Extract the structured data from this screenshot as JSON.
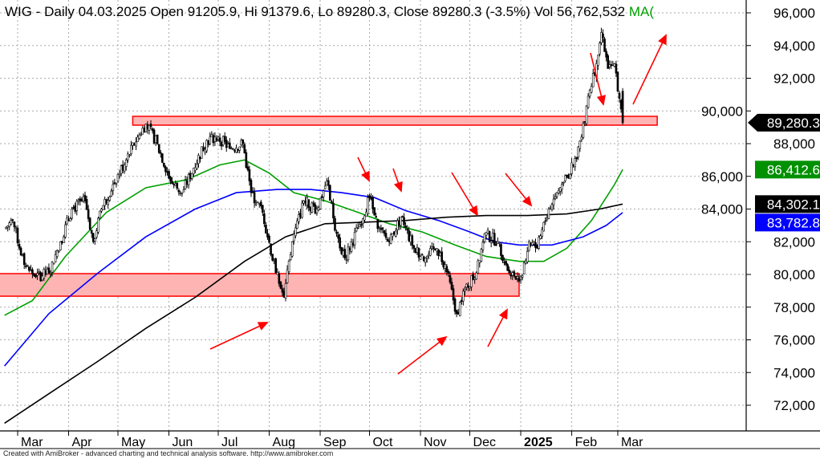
{
  "header": {
    "title": "WIG - Daily 04.03.2025 Open 91205.9, Hi 91379.6, Lo 89280.3, Close 89280.3 (-3.5%) Vol 56,762,532",
    "ma_label": "MA("
  },
  "footer": "Created with AmiBroker - advanced charting and technical analysis software. http://www.amibroker.com",
  "chart_data": {
    "type": "candlestick",
    "symbol": "WIG",
    "interval": "Daily",
    "ylim": [
      70000,
      96500
    ],
    "y_ticks": [
      72000,
      74000,
      76000,
      78000,
      80000,
      82000,
      84000,
      86000,
      88000,
      90000,
      92000,
      94000,
      96000
    ],
    "y_tick_labels": [
      "72,000",
      "74,000",
      "76,000",
      "78,000",
      "80,000",
      "82,000",
      "84,000",
      "86,000",
      "88,000",
      "90,000",
      "92,000",
      "94,000",
      "96,000"
    ],
    "x_ticks": [
      {
        "date": "2024-03-01",
        "label": "Mar"
      },
      {
        "date": "2024-04-01",
        "label": "Apr"
      },
      {
        "date": "2024-05-01",
        "label": "May"
      },
      {
        "date": "2024-06-01",
        "label": "Jun"
      },
      {
        "date": "2024-07-01",
        "label": "Jul"
      },
      {
        "date": "2024-08-01",
        "label": "Aug"
      },
      {
        "date": "2024-09-01",
        "label": "Sep"
      },
      {
        "date": "2024-10-01",
        "label": "Oct"
      },
      {
        "date": "2024-11-01",
        "label": "Nov"
      },
      {
        "date": "2024-12-01",
        "label": "Dec"
      },
      {
        "date": "2025-01-01",
        "label": "2025",
        "bold": true
      },
      {
        "date": "2025-02-01",
        "label": "Feb"
      },
      {
        "date": "2025-03-01",
        "label": "Mar"
      }
    ],
    "grid": true,
    "price": {
      "dates": [
        "2024-02-22",
        "2024-02-27",
        "2024-03-05",
        "2024-03-12",
        "2024-03-20",
        "2024-03-27",
        "2024-04-03",
        "2024-04-11",
        "2024-04-16",
        "2024-04-21",
        "2024-04-28",
        "2024-05-06",
        "2024-05-13",
        "2024-05-18",
        "2024-05-25",
        "2024-06-02",
        "2024-06-09",
        "2024-06-16",
        "2024-06-24",
        "2024-07-01",
        "2024-07-08",
        "2024-07-16",
        "2024-07-21",
        "2024-07-28",
        "2024-08-05",
        "2024-08-10",
        "2024-08-15",
        "2024-08-22",
        "2024-08-30",
        "2024-09-05",
        "2024-09-11",
        "2024-09-16",
        "2024-09-24",
        "2024-10-01",
        "2024-10-06",
        "2024-10-13",
        "2024-10-20",
        "2024-10-28",
        "2024-11-04",
        "2024-11-11",
        "2024-11-16",
        "2024-11-23",
        "2024-11-28",
        "2024-12-05",
        "2024-12-10",
        "2024-12-18",
        "2024-12-25",
        "2025-01-01",
        "2025-01-06",
        "2025-01-11",
        "2025-01-18",
        "2025-01-26",
        "2025-02-02",
        "2025-02-07",
        "2025-02-11",
        "2025-02-16",
        "2025-02-19",
        "2025-02-23",
        "2025-02-27",
        "2025-03-01",
        "2025-03-04"
      ],
      "close": [
        82800,
        83300,
        80600,
        79850,
        80100,
        82000,
        84000,
        84500,
        82000,
        84000,
        85500,
        87000,
        88400,
        89200,
        88000,
        85700,
        85000,
        86500,
        88200,
        88400,
        87700,
        88000,
        85000,
        83800,
        80100,
        78600,
        82000,
        84500,
        84000,
        85700,
        82500,
        81000,
        82800,
        84700,
        82800,
        82000,
        83500,
        81600,
        81000,
        81600,
        80600,
        77600,
        79100,
        80100,
        82500,
        82000,
        80100,
        79850,
        82000,
        81600,
        84000,
        85500,
        86700,
        88400,
        90900,
        92900,
        94800,
        92600,
        92900,
        91205.9,
        89280.3
      ],
      "last": {
        "open": 91205.9,
        "high": 91379.6,
        "low": 89280.3,
        "close": 89280.3,
        "change_pct": -3.5,
        "volume": 56762532
      }
    },
    "series": [
      {
        "color": "#00a000",
        "last_label": "86,412.6",
        "dates": [
          "2024-02-22",
          "2024-03-10",
          "2024-03-30",
          "2024-04-24",
          "2024-05-18",
          "2024-06-12",
          "2024-07-02",
          "2024-07-17",
          "2024-08-01",
          "2024-08-16",
          "2024-09-04",
          "2024-09-24",
          "2024-10-13",
          "2024-11-02",
          "2024-11-22",
          "2024-12-11",
          "2024-12-31",
          "2025-01-15",
          "2025-01-29",
          "2025-02-13",
          "2025-02-27",
          "2025-03-04"
        ],
        "values": [
          77500,
          78400,
          81100,
          83800,
          85300,
          85800,
          86700,
          87000,
          86200,
          85000,
          84500,
          83800,
          83100,
          82600,
          81800,
          81100,
          80800,
          80800,
          81600,
          83300,
          85500,
          86412.6
        ]
      },
      {
        "color": "#0000ff",
        "last_label": "83,782.8",
        "dates": [
          "2024-02-22",
          "2024-03-20",
          "2024-04-19",
          "2024-05-18",
          "2024-06-17",
          "2024-07-12",
          "2024-08-06",
          "2024-08-26",
          "2024-09-14",
          "2024-10-04",
          "2024-10-23",
          "2024-11-12",
          "2024-12-01",
          "2024-12-16",
          "2024-12-31",
          "2025-01-20",
          "2025-02-08",
          "2025-02-22",
          "2025-03-04"
        ],
        "values": [
          74400,
          77600,
          80100,
          82300,
          84000,
          85000,
          85200,
          85200,
          85000,
          84700,
          83900,
          83300,
          82600,
          82000,
          81800,
          81800,
          82300,
          83000,
          83782.8
        ]
      },
      {
        "color": "#000000",
        "last_label": "84,302.1",
        "dates": [
          "2024-02-22",
          "2024-03-20",
          "2024-04-19",
          "2024-05-18",
          "2024-06-17",
          "2024-07-17",
          "2024-08-11",
          "2024-09-04",
          "2024-09-29",
          "2024-10-23",
          "2024-11-17",
          "2024-12-11",
          "2025-01-05",
          "2025-01-29",
          "2025-02-18",
          "2025-03-04"
        ],
        "values": [
          70900,
          72700,
          74700,
          76700,
          78600,
          80800,
          82300,
          83100,
          83200,
          83300,
          83500,
          83600,
          83600,
          83700,
          84000,
          84302.1
        ]
      }
    ],
    "last_price_label": "89,280.3",
    "zones": [
      {
        "from": "2024-05-10",
        "to": "2025-03-25",
        "low": 89130,
        "high": 89670,
        "color": "#ff0000"
      },
      {
        "from": "2024-02-10",
        "to": "2024-12-31",
        "low": 78670,
        "high": 80050,
        "color": "#ff0000"
      }
    ]
  }
}
